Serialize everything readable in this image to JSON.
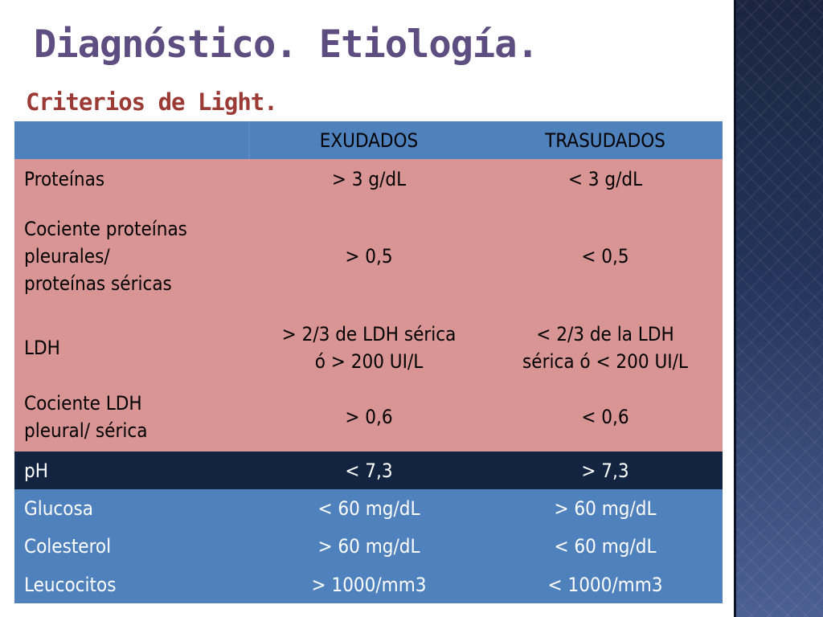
{
  "slide": {
    "title": "Diagnóstico. Etiología.",
    "subtitle": "Criterios de Light."
  },
  "table": {
    "columns": [
      "",
      "EXUDADOS",
      "TRASUDADOS"
    ],
    "rows": [
      {
        "label": "Proteínas",
        "exudados": "> 3 g/dL",
        "trasudados": "< 3 g/dL"
      },
      {
        "label": "Cociente proteínas\npleurales/\nproteínas séricas",
        "exudados": "> 0,5",
        "trasudados": "< 0,5"
      },
      {
        "label": "LDH",
        "exudados": "> 2/3 de LDH sérica\nó > 200 UI/L",
        "trasudados": "< 2/3 de la LDH\nsérica ó < 200 UI/L"
      },
      {
        "label": "Cociente LDH\npleural/ sérica",
        "exudados": "> 0,6",
        "trasudados": "< 0,6"
      },
      {
        "label": "pH",
        "exudados": "< 7,3",
        "trasudados": "> 7,3"
      },
      {
        "label": "Glucosa",
        "exudados": "< 60 mg/dL",
        "trasudados": "> 60 mg/dL"
      },
      {
        "label": "Colesterol",
        "exudados": "> 60 mg/dL",
        "trasudados": "< 60 mg/dL"
      },
      {
        "label": "Leucocitos",
        "exudados": "> 1000/mm3",
        "trasudados": "< 1000/mm3"
      }
    ]
  },
  "colors": {
    "header": "#4f81bd",
    "pink_rows": "#d99594",
    "ph_row": "#132440",
    "blue_rows": "#4f81bd",
    "title": "#5e4d80",
    "subtitle": "#9c3b36"
  }
}
